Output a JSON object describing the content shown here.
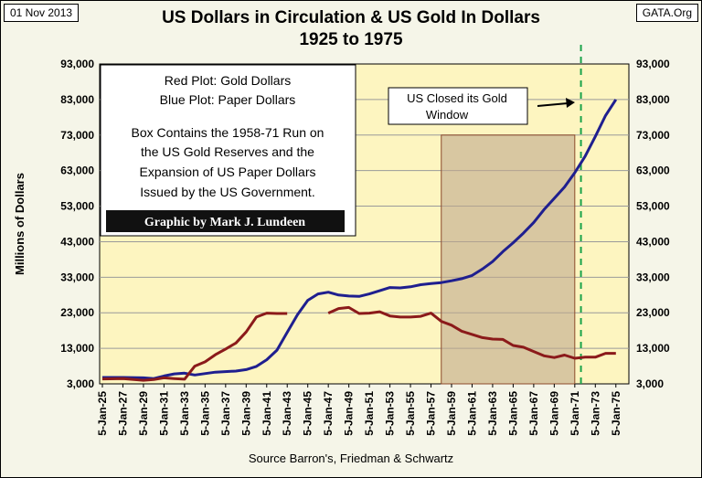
{
  "header": {
    "date": "01 Nov 2013",
    "source": "GATA.Org",
    "title_line1": "US Dollars in Circulation & US Gold In Dollars",
    "title_line2": "1925 to 1975"
  },
  "colors": {
    "plot_bg": "#fdf5c0",
    "paper_dollars": "#1f1f8f",
    "gold_dollars": "#8b1a1a",
    "box_fill": "#bfa98c",
    "box_border": "#8b4a2a",
    "closed_line": "#1aa34a",
    "credit_bg": "#111111"
  },
  "legend_box": {
    "line1": "Red Plot: Gold Dollars",
    "line2": "Blue Plot: Paper Dollars",
    "line3": "Box Contains the 1958-71 Run on",
    "line4": "the US Gold Reserves and the",
    "line5": "Expansion of US Paper Dollars",
    "line6": "Issued by the US Government."
  },
  "credit": "Graphic by Mark J. Lundeen",
  "annotation": {
    "line1": "US Closed its Gold",
    "line2": "Window"
  },
  "chart_data": {
    "type": "line",
    "ylabel": "Millions of Dollars",
    "xlabel": "Source Barron's, Friedman & Schwartz",
    "ylim": [
      3000,
      93000
    ],
    "yticks": [
      "3,000",
      "13,000",
      "23,000",
      "33,000",
      "43,000",
      "53,000",
      "63,000",
      "73,000",
      "83,000",
      "93,000"
    ],
    "xlim": [
      1925,
      1976
    ],
    "xticks": [
      "5-Jan-25",
      "5-Jan-27",
      "5-Jan-29",
      "5-Jan-31",
      "5-Jan-33",
      "5-Jan-35",
      "5-Jan-37",
      "5-Jan-39",
      "5-Jan-41",
      "5-Jan-43",
      "5-Jan-45",
      "5-Jan-47",
      "5-Jan-49",
      "5-Jan-51",
      "5-Jan-53",
      "5-Jan-55",
      "5-Jan-57",
      "5-Jan-59",
      "5-Jan-61",
      "5-Jan-63",
      "5-Jan-65",
      "5-Jan-67",
      "5-Jan-69",
      "5-Jan-71",
      "5-Jan-73",
      "5-Jan-75"
    ],
    "grid": "horizontal",
    "shaded_region": {
      "x": [
        1958,
        1971
      ],
      "y": [
        3000,
        73000
      ]
    },
    "marker_line_x": 1971.6,
    "series": [
      {
        "name": "Paper Dollars",
        "color": "#1f1f8f",
        "points": [
          [
            1925,
            4800
          ],
          [
            1927,
            4800
          ],
          [
            1929,
            4700
          ],
          [
            1930,
            4500
          ],
          [
            1931,
            5200
          ],
          [
            1932,
            5800
          ],
          [
            1933,
            6000
          ],
          [
            1934,
            5500
          ],
          [
            1936,
            6300
          ],
          [
            1938,
            6600
          ],
          [
            1939,
            7000
          ],
          [
            1940,
            7900
          ],
          [
            1941,
            9800
          ],
          [
            1942,
            12500
          ],
          [
            1943,
            17500
          ],
          [
            1944,
            22500
          ],
          [
            1945,
            26500
          ],
          [
            1946,
            28300
          ],
          [
            1947,
            28800
          ],
          [
            1948,
            28000
          ],
          [
            1949,
            27700
          ],
          [
            1950,
            27600
          ],
          [
            1951,
            28300
          ],
          [
            1952,
            29200
          ],
          [
            1953,
            30100
          ],
          [
            1954,
            30000
          ],
          [
            1955,
            30300
          ],
          [
            1956,
            30900
          ],
          [
            1957,
            31200
          ],
          [
            1958,
            31500
          ],
          [
            1959,
            32000
          ],
          [
            1960,
            32600
          ],
          [
            1961,
            33500
          ],
          [
            1962,
            35300
          ],
          [
            1963,
            37400
          ],
          [
            1964,
            40200
          ],
          [
            1965,
            42700
          ],
          [
            1966,
            45400
          ],
          [
            1967,
            48400
          ],
          [
            1968,
            52000
          ],
          [
            1969,
            55200
          ],
          [
            1970,
            58400
          ],
          [
            1971,
            62400
          ],
          [
            1972,
            67000
          ],
          [
            1973,
            72600
          ],
          [
            1974,
            78500
          ],
          [
            1975,
            83000
          ]
        ]
      },
      {
        "name": "Gold Dollars",
        "color": "#8b1a1a",
        "segments": [
          [
            [
              1925,
              4400
            ],
            [
              1927,
              4500
            ],
            [
              1929,
              4000
            ],
            [
              1930,
              4200
            ],
            [
              1931,
              4700
            ],
            [
              1932,
              4500
            ],
            [
              1933,
              4300
            ],
            [
              1934,
              8000
            ],
            [
              1935,
              9200
            ],
            [
              1936,
              11200
            ],
            [
              1937,
              12800
            ],
            [
              1938,
              14500
            ],
            [
              1939,
              17600
            ],
            [
              1940,
              21800
            ],
            [
              1941,
              22900
            ],
            [
              1942,
              22800
            ],
            [
              1943,
              22800
            ]
          ],
          [
            [
              1947,
              22900
            ],
            [
              1948,
              24200
            ],
            [
              1949,
              24500
            ],
            [
              1950,
              22800
            ],
            [
              1951,
              22900
            ],
            [
              1952,
              23300
            ],
            [
              1953,
              22100
            ],
            [
              1954,
              21800
            ],
            [
              1955,
              21800
            ],
            [
              1956,
              22000
            ],
            [
              1957,
              22900
            ],
            [
              1958,
              20600
            ],
            [
              1959,
              19500
            ],
            [
              1960,
              17800
            ],
            [
              1961,
              16900
            ],
            [
              1962,
              16000
            ],
            [
              1963,
              15600
            ],
            [
              1964,
              15500
            ],
            [
              1965,
              13800
            ],
            [
              1966,
              13300
            ],
            [
              1967,
              12100
            ],
            [
              1968,
              10900
            ],
            [
              1969,
              10400
            ],
            [
              1970,
              11100
            ],
            [
              1971,
              10200
            ],
            [
              1972,
              10500
            ],
            [
              1973,
              10500
            ],
            [
              1974,
              11600
            ],
            [
              1975,
              11600
            ]
          ]
        ]
      }
    ]
  }
}
